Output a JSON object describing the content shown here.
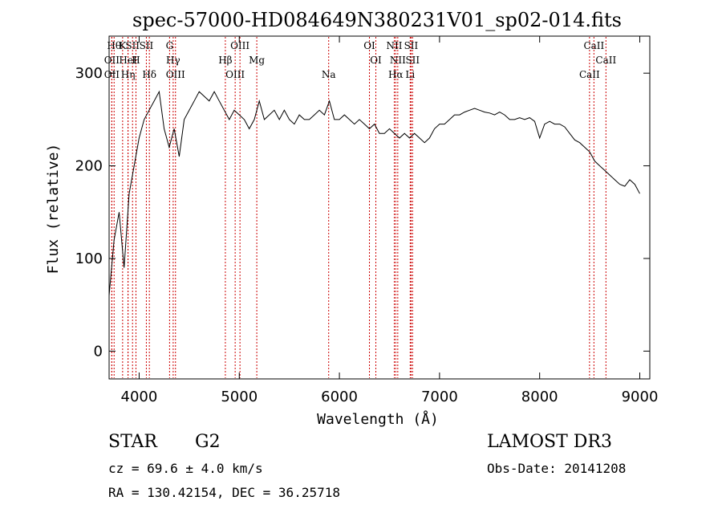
{
  "chart_data": {
    "type": "line",
    "title": "spec-57000-HD084649N380231V01_sp02-014.fits",
    "xlabel": "Wavelength (Å)",
    "ylabel": "Flux (relative)",
    "xlim": [
      3700,
      9100
    ],
    "ylim": [
      -30,
      340
    ],
    "xticks": [
      4000,
      5000,
      6000,
      7000,
      8000,
      9000
    ],
    "yticks": [
      0,
      100,
      200,
      300
    ],
    "grid": false,
    "series": [
      {
        "color": "#000000",
        "x": [
          3700,
          3750,
          3800,
          3850,
          3900,
          3950,
          4000,
          4050,
          4100,
          4150,
          4200,
          4250,
          4300,
          4350,
          4400,
          4450,
          4500,
          4550,
          4600,
          4650,
          4700,
          4750,
          4800,
          4850,
          4900,
          4950,
          5000,
          5050,
          5100,
          5150,
          5200,
          5250,
          5300,
          5350,
          5400,
          5450,
          5500,
          5550,
          5600,
          5650,
          5700,
          5750,
          5800,
          5850,
          5900,
          5950,
          6000,
          6050,
          6100,
          6150,
          6200,
          6250,
          6300,
          6350,
          6400,
          6450,
          6500,
          6550,
          6600,
          6650,
          6700,
          6750,
          6800,
          6850,
          6900,
          6950,
          7000,
          7050,
          7100,
          7150,
          7200,
          7250,
          7300,
          7350,
          7400,
          7450,
          7500,
          7550,
          7600,
          7650,
          7700,
          7750,
          7800,
          7850,
          7900,
          7950,
          8000,
          8050,
          8100,
          8150,
          8200,
          8250,
          8300,
          8350,
          8400,
          8450,
          8500,
          8550,
          8600,
          8650,
          8700,
          8750,
          8800,
          8850,
          8900,
          8950,
          9000
        ],
        "y": [
          60,
          120,
          150,
          90,
          170,
          200,
          230,
          250,
          260,
          270,
          280,
          240,
          220,
          240,
          210,
          250,
          260,
          270,
          280,
          275,
          270,
          280,
          270,
          260,
          250,
          260,
          255,
          250,
          240,
          250,
          270,
          250,
          255,
          260,
          250,
          260,
          250,
          245,
          255,
          250,
          250,
          255,
          260,
          255,
          270,
          250,
          250,
          255,
          250,
          245,
          250,
          245,
          240,
          245,
          235,
          235,
          240,
          235,
          230,
          235,
          230,
          235,
          230,
          225,
          230,
          240,
          245,
          245,
          250,
          255,
          255,
          258,
          260,
          262,
          260,
          258,
          257,
          255,
          258,
          255,
          250,
          250,
          252,
          250,
          252,
          248,
          230,
          245,
          248,
          245,
          245,
          242,
          235,
          228,
          225,
          220,
          215,
          205,
          200,
          195,
          190,
          185,
          180,
          178,
          185,
          180,
          170
        ]
      }
    ],
    "line_markers": [
      {
        "wl": 3750,
        "label": "Hθ"
      },
      {
        "wl": 3727,
        "label": "OII"
      },
      {
        "wl": 3727,
        "label": "OII"
      },
      {
        "wl": 3835,
        "label": "K"
      },
      {
        "wl": 3889,
        "label": "HeI"
      },
      {
        "wl": 3889,
        "label": "Hη"
      },
      {
        "wl": 3934,
        "label": "SII"
      },
      {
        "wl": 3968,
        "label": "H"
      },
      {
        "wl": 4102,
        "label": "Hδ"
      },
      {
        "wl": 4072,
        "label": "SII"
      },
      {
        "wl": 4340,
        "label": "Hγ"
      },
      {
        "wl": 4363,
        "label": "OIII"
      },
      {
        "wl": 4304,
        "label": "G"
      },
      {
        "wl": 4861,
        "label": "Hβ"
      },
      {
        "wl": 4959,
        "label": "OIII"
      },
      {
        "wl": 5007,
        "label": "OIII"
      },
      {
        "wl": 5175,
        "label": "Mg"
      },
      {
        "wl": 5893,
        "label": "Na"
      },
      {
        "wl": 6300,
        "label": "OI"
      },
      {
        "wl": 6364,
        "label": "OI"
      },
      {
        "wl": 6563,
        "label": "Hα"
      },
      {
        "wl": 6548,
        "label": "NII"
      },
      {
        "wl": 6583,
        "label": "NII"
      },
      {
        "wl": 6707,
        "label": "Li"
      },
      {
        "wl": 6716,
        "label": "SII"
      },
      {
        "wl": 6731,
        "label": "SII"
      },
      {
        "wl": 8498,
        "label": "CaII"
      },
      {
        "wl": 8542,
        "label": "CaII"
      },
      {
        "wl": 8662,
        "label": "CaII"
      }
    ]
  },
  "info": {
    "class": "STAR",
    "subclass": "G2",
    "survey": "LAMOST DR3",
    "cz": "cz = 69.6 ± 4.0 km/s",
    "obs_date": "Obs-Date: 20141208",
    "radec": "RA = 130.42154, DEC =  36.25718"
  },
  "colors": {
    "spectrum": "#000000",
    "marker": "#cc0000",
    "axis": "#000000"
  }
}
